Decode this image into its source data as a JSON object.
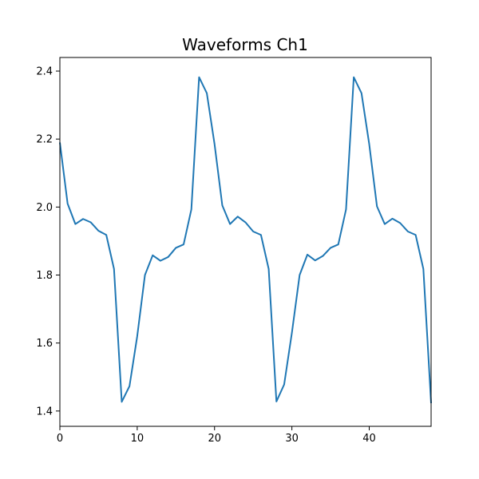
{
  "chart_data": {
    "type": "line",
    "title": "Waveforms Ch1",
    "xlabel": "",
    "ylabel": "",
    "xlim": [
      0,
      48
    ],
    "ylim": [
      1.355,
      2.44
    ],
    "xticks": [
      0,
      10,
      20,
      30,
      40
    ],
    "xtick_labels": [
      "0",
      "10",
      "20",
      "30",
      "40"
    ],
    "yticks": [
      1.4,
      1.6,
      1.8,
      2.0,
      2.2,
      2.4
    ],
    "ytick_labels": [
      "1.4",
      "1.6",
      "1.8",
      "2.0",
      "2.2",
      "2.4"
    ],
    "grid": false,
    "legend": "none",
    "colors": {
      "line": "#1f77b4",
      "axes": "#000000"
    },
    "series": [
      {
        "x": [
          0,
          1,
          2,
          3,
          4,
          5,
          6,
          7,
          8,
          9,
          10,
          11,
          12,
          13,
          14,
          15,
          16,
          17,
          18,
          19,
          20,
          21,
          22,
          23,
          24,
          25,
          26,
          27,
          28,
          29,
          30,
          31,
          32,
          33,
          34,
          35,
          36,
          37,
          38,
          39,
          40,
          41,
          42,
          43,
          44,
          45,
          46,
          47,
          48
        ],
        "values": [
          2.19,
          2.01,
          1.95,
          1.965,
          1.955,
          1.93,
          1.918,
          1.818,
          1.427,
          1.473,
          1.62,
          1.8,
          1.858,
          1.842,
          1.853,
          1.88,
          1.89,
          1.993,
          2.382,
          2.335,
          2.185,
          2.005,
          1.95,
          1.972,
          1.955,
          1.928,
          1.918,
          1.818,
          1.428,
          1.478,
          1.63,
          1.8,
          1.86,
          1.843,
          1.856,
          1.88,
          1.89,
          1.993,
          2.382,
          2.335,
          2.185,
          2.002,
          1.95,
          1.966,
          1.953,
          1.928,
          1.918,
          1.818,
          1.423
        ]
      }
    ]
  }
}
